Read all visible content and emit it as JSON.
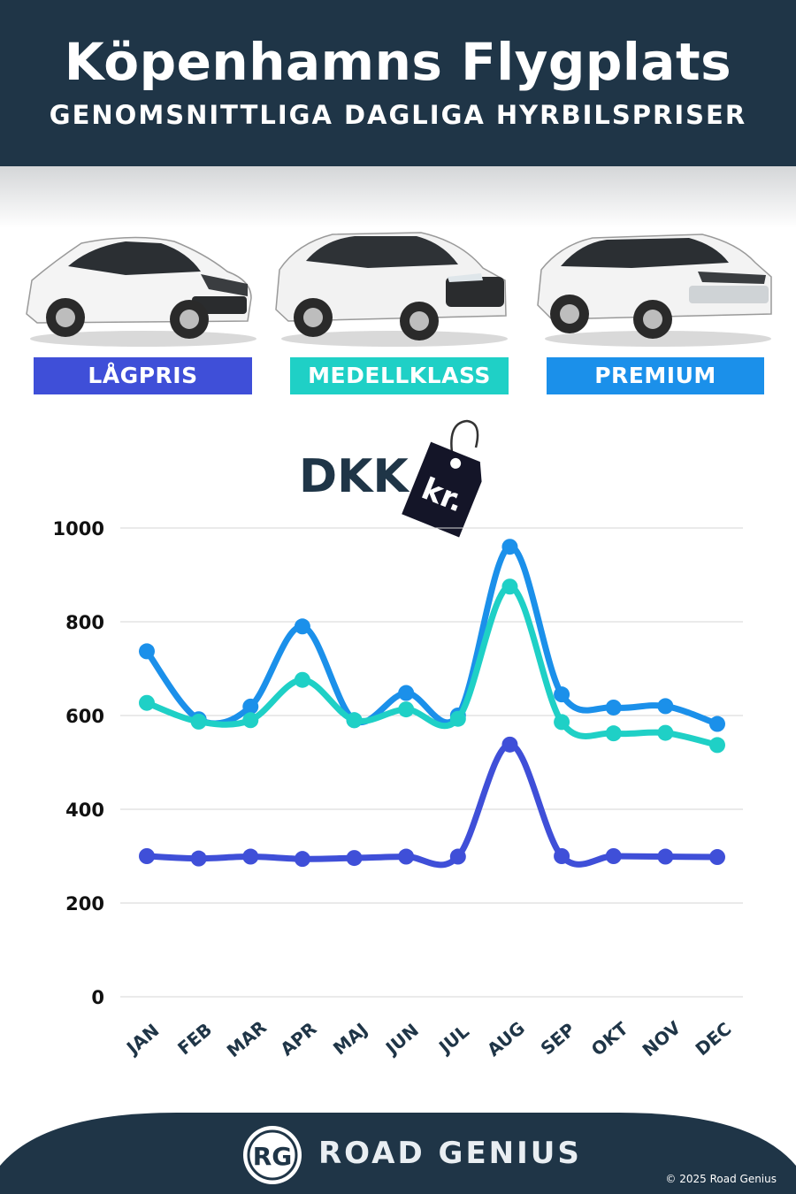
{
  "header": {
    "title": "Köpenhamns Flygplats",
    "subtitle": "GENOMSNITTLIGA DAGLIGA HYRBILSPRISER"
  },
  "categories": [
    {
      "label": "LÅGPRIS",
      "color": "#3f4fd8"
    },
    {
      "label": "MEDELLKLASS",
      "color": "#1fd0c6"
    },
    {
      "label": "PREMIUM",
      "color": "#1b90ea"
    }
  ],
  "currency": {
    "label": "DKK",
    "tag_text": "kr."
  },
  "chart_data": {
    "type": "line",
    "categories": [
      "JAN",
      "FEB",
      "MAR",
      "APR",
      "MAJ",
      "JUN",
      "JUL",
      "AUG",
      "SEP",
      "OKT",
      "NOV",
      "DEC"
    ],
    "series": [
      {
        "name": "PREMIUM",
        "color": "#1b90ea",
        "values": [
          737,
          592,
          619,
          790,
          590,
          648,
          600,
          960,
          645,
          617,
          620,
          582
        ]
      },
      {
        "name": "MEDELLKLASS",
        "color": "#1fd0c6",
        "values": [
          627,
          587,
          590,
          676,
          590,
          613,
          593,
          875,
          586,
          562,
          563,
          537
        ]
      },
      {
        "name": "LÅGPRIS",
        "color": "#3f4fd8",
        "values": [
          300,
          295,
          299,
          294,
          296,
          299,
          299,
          538,
          300,
          300,
          299,
          298
        ]
      }
    ],
    "yticks": [
      0,
      200,
      400,
      600,
      800,
      1000
    ],
    "ylim": [
      0,
      1000
    ],
    "grid": true
  },
  "footer": {
    "logo_text": "RG",
    "brand": "ROAD GENIUS",
    "copyright": "© 2025 Road Genius",
    "bg_color": "#1f3547"
  }
}
